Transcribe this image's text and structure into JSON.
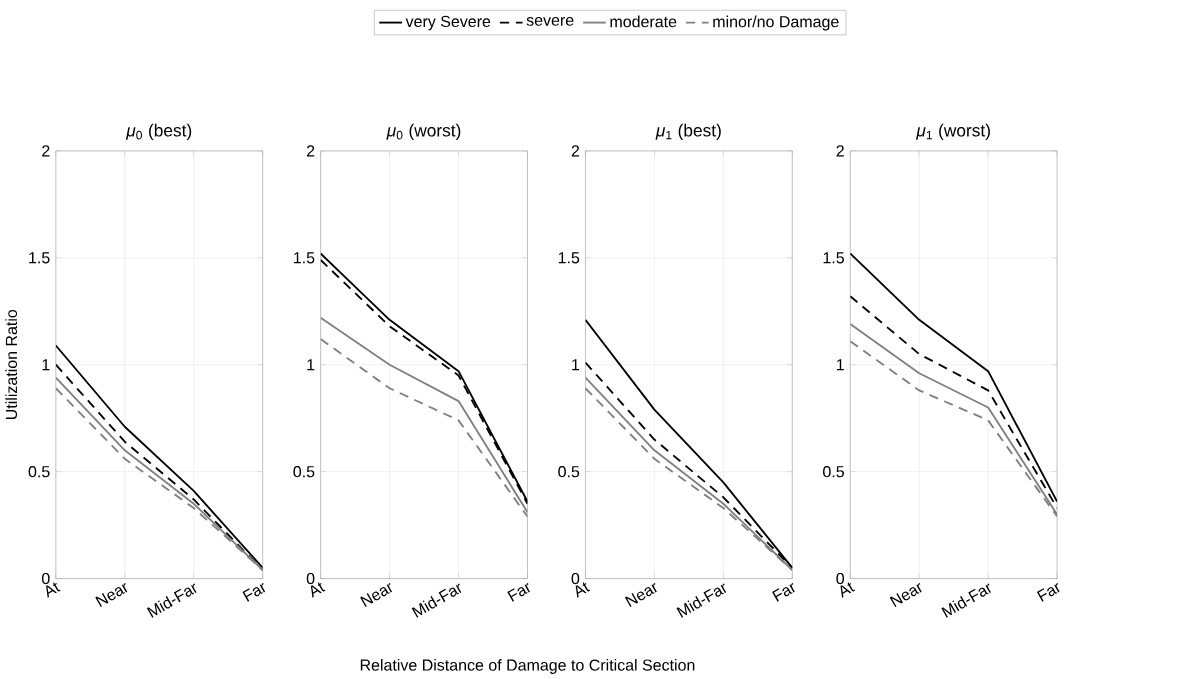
{
  "chart_data": [
    {
      "type": "line",
      "title": "*μ*$_{0}$ (best)",
      "ylabel": "Utilization Ratio",
      "categories": [
        "At",
        "Near",
        "Mid-Far",
        "Far"
      ],
      "ylim": [
        0,
        2
      ],
      "yticks": [
        0,
        0.5,
        1,
        1.5,
        2
      ],
      "grid": true,
      "legend": "top",
      "series": [
        {
          "name": "very Severe",
          "color": "#000000",
          "line_style": "solid",
          "values": [
            1.09,
            0.71,
            0.41,
            0.05
          ]
        },
        {
          "name": "severe",
          "color": "#000000",
          "line_style": "dashed",
          "values": [
            1.0,
            0.64,
            0.37,
            0.04
          ]
        },
        {
          "name": "moderate",
          "color": "#808080",
          "line_style": "solid",
          "values": [
            0.94,
            0.6,
            0.35,
            0.04
          ]
        },
        {
          "name": "minor/no Damage",
          "color": "#808080",
          "line_style": "dashed",
          "values": [
            0.89,
            0.56,
            0.33,
            0.04
          ]
        }
      ]
    },
    {
      "type": "line",
      "title": "*μ*$_{0}$ (worst)",
      "xlabel": "Relative Distance of Damage to Critical Section",
      "categories": [
        "At",
        "Near",
        "Mid-Far",
        "Far"
      ],
      "ylim": [
        0,
        2
      ],
      "yticks": [
        0,
        0.5,
        1,
        1.5,
        2
      ],
      "grid": true,
      "series": [
        {
          "color": "#000000",
          "line_style": "solid",
          "values": [
            1.52,
            1.21,
            0.97,
            0.36
          ]
        },
        {
          "color": "#000000",
          "line_style": "dashed",
          "values": [
            1.49,
            1.18,
            0.95,
            0.35
          ]
        },
        {
          "color": "#808080",
          "line_style": "solid",
          "values": [
            1.22,
            1.0,
            0.83,
            0.31
          ]
        },
        {
          "color": "#808080",
          "line_style": "dashed",
          "values": [
            1.12,
            0.89,
            0.74,
            0.29
          ]
        }
      ]
    },
    {
      "type": "line",
      "title": "*μ*$_{1}$ (best)",
      "categories": [
        "At",
        "Near",
        "Mid-Far",
        "Far"
      ],
      "ylim": [
        0,
        2
      ],
      "yticks": [
        0,
        0.5,
        1,
        1.5,
        2
      ],
      "grid": true,
      "series": [
        {
          "color": "#000000",
          "line_style": "solid",
          "values": [
            1.21,
            0.79,
            0.45,
            0.05
          ]
        },
        {
          "color": "#000000",
          "line_style": "dashed",
          "values": [
            1.01,
            0.65,
            0.38,
            0.05
          ]
        },
        {
          "color": "#808080",
          "line_style": "solid",
          "values": [
            0.94,
            0.6,
            0.35,
            0.04
          ]
        },
        {
          "color": "#808080",
          "line_style": "dashed",
          "values": [
            0.89,
            0.56,
            0.33,
            0.04
          ]
        }
      ]
    },
    {
      "type": "line",
      "title": "*μ*$_{1}$ (worst)",
      "categories": [
        "At",
        "Near",
        "Mid-Far",
        "Far"
      ],
      "ylim": [
        0,
        2
      ],
      "yticks": [
        0,
        0.5,
        1,
        1.5,
        2
      ],
      "grid": true,
      "series": [
        {
          "color": "#000000",
          "line_style": "solid",
          "values": [
            1.52,
            1.21,
            0.97,
            0.36
          ]
        },
        {
          "color": "#000000",
          "line_style": "dashed",
          "values": [
            1.32,
            1.05,
            0.88,
            0.33
          ]
        },
        {
          "color": "#808080",
          "line_style": "solid",
          "values": [
            1.19,
            0.96,
            0.8,
            0.3
          ]
        },
        {
          "color": "#808080",
          "line_style": "dashed",
          "values": [
            1.11,
            0.88,
            0.74,
            0.29
          ]
        }
      ]
    }
  ]
}
